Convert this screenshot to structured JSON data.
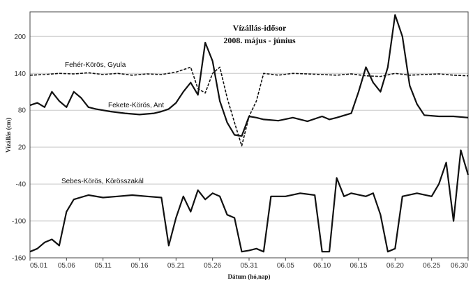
{
  "chart_data": {
    "type": "line",
    "title": "Vízállás-idősor",
    "subtitle": "2008. május - június",
    "xlabel": "Dátum (hó,nap)",
    "ylabel": "Vízállás (cm)",
    "ylim": [
      -160,
      240
    ],
    "xlim": [
      "05.01",
      "06.30"
    ],
    "grid": "horizontal",
    "y_ticks": [
      "200",
      "140",
      "80",
      "20",
      "-40",
      "-100",
      "-160"
    ],
    "x_ticks": [
      "05.01",
      "05.06",
      "05.11",
      "05.16",
      "05.21",
      "05.26",
      "05.31",
      "06.05",
      "06.10",
      "06.15",
      "06.20",
      "06.25",
      "06.30"
    ],
    "series": [
      {
        "name": "Fehér-Körös, Gyula",
        "style": "dashed",
        "x": [
          "05.01",
          "05.03",
          "05.05",
          "05.07",
          "05.09",
          "05.11",
          "05.13",
          "05.15",
          "05.17",
          "05.19",
          "05.21",
          "05.23",
          "05.24",
          "05.25",
          "05.26",
          "05.27",
          "05.28",
          "05.29",
          "05.30",
          "05.31",
          "06.01",
          "06.02",
          "06.04",
          "06.06",
          "06.08",
          "06.10",
          "06.12",
          "06.14",
          "06.16",
          "06.18",
          "06.20",
          "06.22",
          "06.24",
          "06.26",
          "06.28",
          "06.30"
        ],
        "values": [
          137,
          138,
          140,
          139,
          141,
          138,
          140,
          137,
          139,
          138,
          142,
          150,
          115,
          108,
          140,
          150,
          100,
          60,
          22,
          70,
          95,
          140,
          137,
          140,
          139,
          138,
          137,
          139,
          136,
          135,
          140,
          137,
          138,
          139,
          137,
          136
        ]
      },
      {
        "name": "Fekete-Körös, Ant",
        "style": "solid",
        "x": [
          "05.01",
          "05.02",
          "05.03",
          "05.04",
          "05.05",
          "05.06",
          "05.07",
          "05.08",
          "05.09",
          "05.10",
          "05.12",
          "05.14",
          "05.16",
          "05.18",
          "05.19",
          "05.20",
          "05.21",
          "05.22",
          "05.23",
          "05.24",
          "05.25",
          "05.26",
          "05.27",
          "05.28",
          "05.29",
          "05.30",
          "05.31",
          "06.01",
          "06.02",
          "06.04",
          "06.06",
          "06.08",
          "06.10",
          "06.11",
          "06.12",
          "06.14",
          "06.15",
          "06.16",
          "06.17",
          "06.18",
          "06.19",
          "06.20",
          "06.21",
          "06.22",
          "06.23",
          "06.24",
          "06.26",
          "06.28",
          "06.30"
        ],
        "values": [
          88,
          92,
          85,
          110,
          95,
          85,
          110,
          100,
          85,
          82,
          78,
          75,
          73,
          75,
          78,
          82,
          92,
          110,
          125,
          105,
          190,
          160,
          95,
          60,
          40,
          38,
          70,
          68,
          65,
          63,
          68,
          62,
          70,
          65,
          68,
          75,
          110,
          150,
          125,
          110,
          150,
          235,
          200,
          120,
          90,
          72,
          70,
          70,
          68
        ]
      },
      {
        "name": "Sebes-Körös, Körösszakál",
        "style": "solid",
        "x": [
          "05.01",
          "05.02",
          "05.03",
          "05.04",
          "05.05",
          "05.06",
          "05.07",
          "05.09",
          "05.11",
          "05.13",
          "05.15",
          "05.17",
          "05.19",
          "05.20",
          "05.21",
          "05.22",
          "05.23",
          "05.24",
          "05.25",
          "05.26",
          "05.27",
          "05.28",
          "05.29",
          "05.30",
          "05.31",
          "06.01",
          "06.02",
          "06.03",
          "06.05",
          "06.07",
          "06.09",
          "06.10",
          "06.11",
          "06.12",
          "06.13",
          "06.14",
          "06.16",
          "06.17",
          "06.18",
          "06.19",
          "06.20",
          "06.21",
          "06.23",
          "06.25",
          "06.26",
          "06.27",
          "06.28",
          "06.29",
          "06.30"
        ],
        "values": [
          -150,
          -145,
          -135,
          -130,
          -140,
          -85,
          -65,
          -58,
          -62,
          -60,
          -58,
          -60,
          -62,
          -140,
          -95,
          -60,
          -85,
          -50,
          -65,
          -55,
          -60,
          -90,
          -95,
          -150,
          -148,
          -145,
          -150,
          -60,
          -60,
          -55,
          -58,
          -150,
          -150,
          -30,
          -60,
          -55,
          -60,
          -55,
          -90,
          -150,
          -145,
          -60,
          -55,
          -60,
          -40,
          -5,
          -100,
          15,
          -25
        ]
      }
    ],
    "annotations": [
      "Fehér-Körös, Gyula",
      "Fekete-Körös, Ant",
      "Sebes-Körös, Körösszakál"
    ]
  }
}
